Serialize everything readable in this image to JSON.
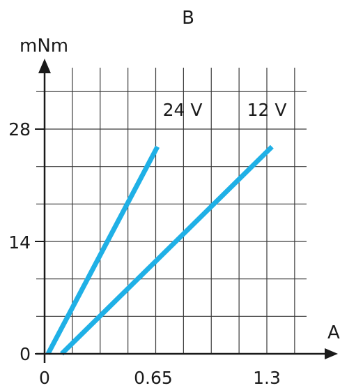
{
  "chart_data": {
    "type": "line",
    "title": "B",
    "xlabel": "A",
    "ylabel": "mNm",
    "xlim": [
      0,
      1.3
    ],
    "ylim": [
      0,
      28
    ],
    "x_ticks": [
      {
        "value": 0,
        "label": "0"
      },
      {
        "value": 0.65,
        "label": "0.65"
      },
      {
        "value": 1.3,
        "label": "1.3"
      }
    ],
    "y_ticks": [
      {
        "value": 0,
        "label": "0"
      },
      {
        "value": 14,
        "label": "14"
      },
      {
        "value": 28,
        "label": "28"
      }
    ],
    "grid": true,
    "series": [
      {
        "name": "24 V",
        "x": [
          0.02,
          0.66
        ],
        "y": [
          0,
          25.8
        ],
        "color": "#1fb0e6"
      },
      {
        "name": "12 V",
        "x": [
          0.1,
          1.33
        ],
        "y": [
          0,
          25.8
        ],
        "color": "#1fb0e6"
      }
    ]
  }
}
